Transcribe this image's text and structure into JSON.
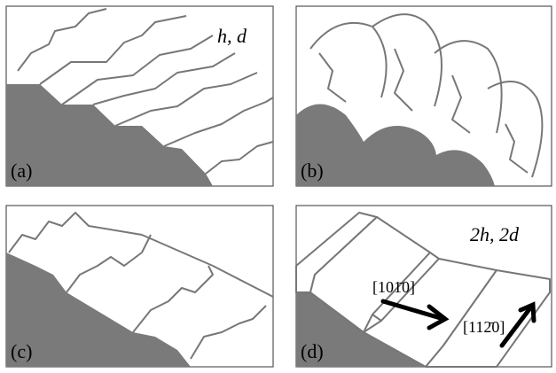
{
  "panels": [
    {
      "label": "(a)",
      "annotation": "h, d"
    },
    {
      "label": "(b)"
    },
    {
      "label": "(c)"
    },
    {
      "label": "(d)",
      "annotation": "2h, 2d",
      "directions": [
        "[101̄0]",
        "[112̄0]"
      ]
    }
  ]
}
